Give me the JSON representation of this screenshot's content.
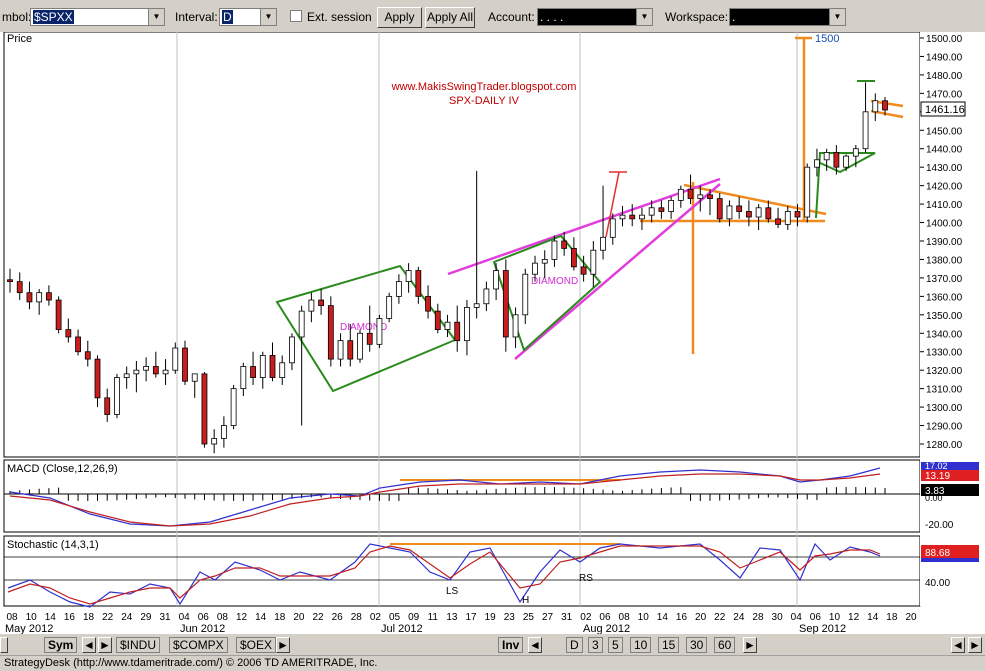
{
  "toolbar": {
    "symbol_label": "mbol:",
    "symbol_value": "$SPXX",
    "interval_label": "Interval:",
    "interval_value": "D",
    "ext_session_label": "Ext. session",
    "apply_label": "Apply",
    "apply_all_label": "Apply All",
    "account_label": "Account:",
    "account_value": ".   .     .   .",
    "workspace_label": "Workspace:",
    "workspace_value": "."
  },
  "price_panel": {
    "title": "Price",
    "watermark_url": "www.MakisSwingTrader.blogspot.com",
    "watermark_sub": "SPX-DAILY IV",
    "target_label": "1500",
    "pattern_labels": [
      "DIAMOND",
      "DIAMOND"
    ],
    "last_price": "1461.16"
  },
  "macd_panel": {
    "title": "MACD (Close,12,26,9)",
    "tags": [
      "17.02",
      "13.19",
      "3.83"
    ],
    "scale": [
      "0.00",
      "-20.00"
    ]
  },
  "stoch_panel": {
    "title": "Stochastic (14,3,1)",
    "tag": "88.68",
    "scale": "40.00",
    "labels": [
      "LS",
      "H",
      "RS"
    ]
  },
  "x_axis": {
    "ticks": [
      "08",
      "10",
      "14",
      "16",
      "18",
      "22",
      "24",
      "29",
      "31",
      "04",
      "06",
      "08",
      "12",
      "14",
      "18",
      "20",
      "22",
      "26",
      "28",
      "02",
      "05",
      "09",
      "11",
      "13",
      "17",
      "19",
      "23",
      "25",
      "27",
      "31",
      "02",
      "06",
      "08",
      "10",
      "14",
      "16",
      "20",
      "22",
      "24",
      "28",
      "30",
      "04",
      "06",
      "10",
      "12",
      "14",
      "18",
      "20"
    ],
    "months": [
      "May 2012",
      "Jun 2012",
      "Jul 2012",
      "Aug 2012",
      "Sep 2012"
    ]
  },
  "chart_data": {
    "type": "candlestick",
    "y_axis_ticks": [
      "1500.00",
      "1490.00",
      "1480.00",
      "1470.00",
      "1460.00",
      "1450.00",
      "1440.00",
      "1430.00",
      "1420.00",
      "1410.00",
      "1400.00",
      "1390.00",
      "1380.00",
      "1370.00",
      "1360.00",
      "1350.00",
      "1340.00",
      "1330.00",
      "1320.00",
      "1310.00",
      "1300.00",
      "1290.00",
      "1280.00"
    ],
    "ylim": [
      1272,
      1505
    ],
    "candles": [
      [
        1369,
        1375,
        1362,
        1368
      ],
      [
        1368,
        1373,
        1358,
        1362
      ],
      [
        1362,
        1368,
        1353,
        1357
      ],
      [
        1357,
        1364,
        1350,
        1362
      ],
      [
        1362,
        1366,
        1355,
        1358
      ],
      [
        1358,
        1360,
        1340,
        1342
      ],
      [
        1342,
        1348,
        1335,
        1338
      ],
      [
        1338,
        1342,
        1328,
        1330
      ],
      [
        1330,
        1336,
        1322,
        1326
      ],
      [
        1326,
        1328,
        1300,
        1305
      ],
      [
        1305,
        1310,
        1292,
        1296
      ],
      [
        1296,
        1318,
        1294,
        1316
      ],
      [
        1316,
        1322,
        1310,
        1318
      ],
      [
        1318,
        1325,
        1308,
        1320
      ],
      [
        1320,
        1327,
        1314,
        1322
      ],
      [
        1322,
        1330,
        1316,
        1318
      ],
      [
        1318,
        1326,
        1312,
        1320
      ],
      [
        1320,
        1335,
        1318,
        1332
      ],
      [
        1332,
        1336,
        1312,
        1314
      ],
      [
        1314,
        1318,
        1305,
        1318
      ],
      [
        1318,
        1319,
        1278,
        1280
      ],
      [
        1280,
        1288,
        1275,
        1283
      ],
      [
        1283,
        1295,
        1278,
        1290
      ],
      [
        1290,
        1312,
        1288,
        1310
      ],
      [
        1310,
        1324,
        1306,
        1322
      ],
      [
        1322,
        1330,
        1312,
        1316
      ],
      [
        1316,
        1330,
        1310,
        1328
      ],
      [
        1328,
        1335,
        1314,
        1316
      ],
      [
        1316,
        1328,
        1312,
        1324
      ],
      [
        1324,
        1340,
        1320,
        1338
      ],
      [
        1338,
        1355,
        1290,
        1352
      ],
      [
        1352,
        1362,
        1346,
        1358
      ],
      [
        1358,
        1364,
        1350,
        1355
      ],
      [
        1355,
        1360,
        1322,
        1326
      ],
      [
        1326,
        1340,
        1322,
        1336
      ],
      [
        1336,
        1345,
        1322,
        1326
      ],
      [
        1326,
        1342,
        1324,
        1340
      ],
      [
        1340,
        1355,
        1330,
        1334
      ],
      [
        1334,
        1350,
        1332,
        1348
      ],
      [
        1348,
        1362,
        1346,
        1360
      ],
      [
        1360,
        1372,
        1356,
        1368
      ],
      [
        1368,
        1378,
        1362,
        1374
      ],
      [
        1374,
        1376,
        1356,
        1360
      ],
      [
        1360,
        1366,
        1348,
        1352
      ],
      [
        1352,
        1356,
        1340,
        1342
      ],
      [
        1342,
        1350,
        1338,
        1346
      ],
      [
        1346,
        1355,
        1330,
        1336
      ],
      [
        1336,
        1358,
        1328,
        1354
      ],
      [
        1354,
        1428,
        1348,
        1356
      ],
      [
        1356,
        1368,
        1352,
        1364
      ],
      [
        1364,
        1378,
        1358,
        1374
      ],
      [
        1374,
        1380,
        1330,
        1338
      ],
      [
        1338,
        1354,
        1332,
        1350
      ],
      [
        1350,
        1375,
        1345,
        1372
      ],
      [
        1372,
        1382,
        1368,
        1378
      ],
      [
        1378,
        1385,
        1370,
        1380
      ],
      [
        1380,
        1393,
        1376,
        1390
      ],
      [
        1390,
        1395,
        1382,
        1386
      ],
      [
        1386,
        1392,
        1374,
        1376
      ],
      [
        1376,
        1382,
        1368,
        1372
      ],
      [
        1372,
        1390,
        1365,
        1385
      ],
      [
        1385,
        1420,
        1380,
        1392
      ],
      [
        1392,
        1405,
        1388,
        1402
      ],
      [
        1402,
        1409,
        1398,
        1404
      ],
      [
        1404,
        1410,
        1398,
        1402
      ],
      [
        1402,
        1408,
        1396,
        1404
      ],
      [
        1404,
        1412,
        1400,
        1408
      ],
      [
        1408,
        1412,
        1402,
        1406
      ],
      [
        1406,
        1414,
        1402,
        1412
      ],
      [
        1412,
        1420,
        1408,
        1418
      ],
      [
        1418,
        1426,
        1410,
        1413
      ],
      [
        1413,
        1420,
        1406,
        1415
      ],
      [
        1415,
        1418,
        1404,
        1413
      ],
      [
        1413,
        1416,
        1400,
        1402
      ],
      [
        1402,
        1412,
        1398,
        1409
      ],
      [
        1409,
        1414,
        1402,
        1406
      ],
      [
        1406,
        1412,
        1398,
        1403
      ],
      [
        1403,
        1410,
        1396,
        1408
      ],
      [
        1408,
        1412,
        1400,
        1402
      ],
      [
        1402,
        1408,
        1397,
        1399
      ],
      [
        1399,
        1409,
        1396,
        1406
      ],
      [
        1406,
        1410,
        1398,
        1403
      ],
      [
        1403,
        1432,
        1400,
        1430
      ],
      [
        1430,
        1440,
        1425,
        1434
      ],
      [
        1434,
        1440,
        1428,
        1438
      ],
      [
        1438,
        1442,
        1426,
        1430
      ],
      [
        1430,
        1437,
        1428,
        1436
      ],
      [
        1436,
        1442,
        1430,
        1440
      ],
      [
        1440,
        1476,
        1438,
        1460
      ],
      [
        1460,
        1470,
        1455,
        1466
      ],
      [
        1466,
        1468,
        1458,
        1461
      ]
    ]
  }
}
